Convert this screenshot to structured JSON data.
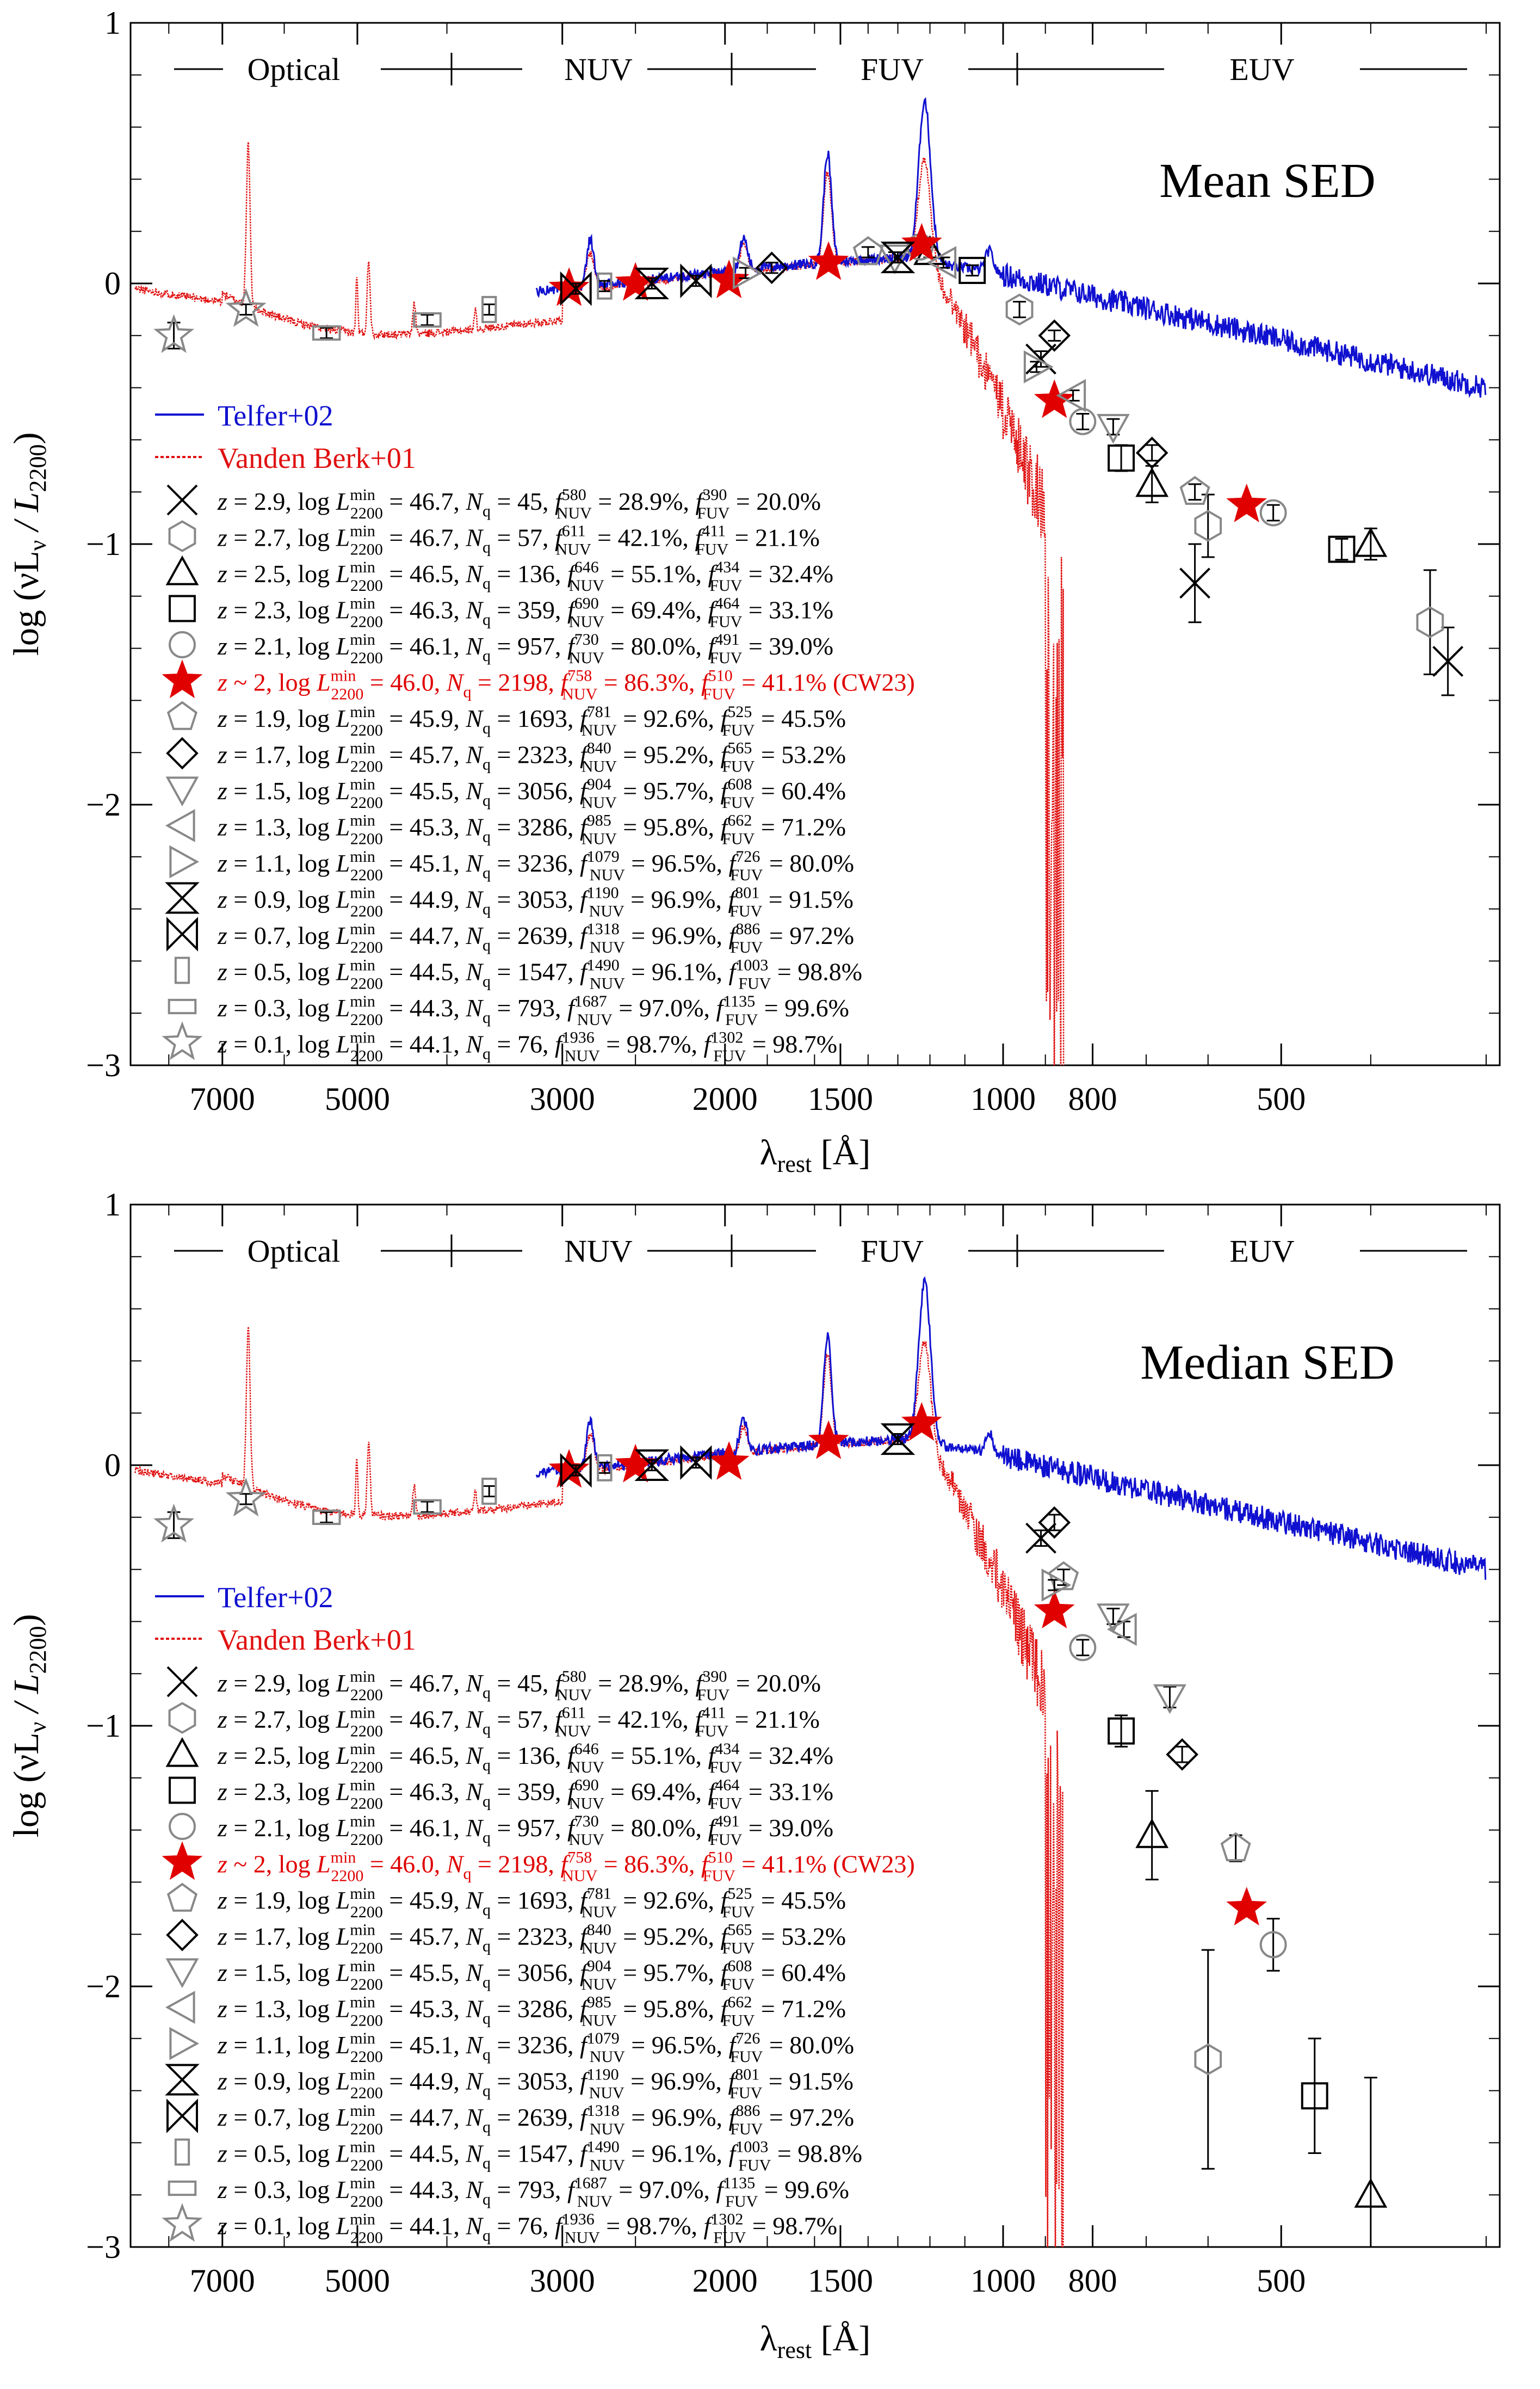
{
  "figure": {
    "xlabel_main": "λ",
    "xlabel_sub": "rest",
    "xlabel_unit": " [Å]",
    "ylabel": "log (νL",
    "ylabel_nu": "ν",
    "ylabel_mid": " / L",
    "ylabel_sub": "2200",
    "ylabel_end": ")",
    "bands": [
      "Optical",
      "NUV",
      "FUV",
      "EUV"
    ],
    "colors": {
      "telfer": "#1010d0",
      "vandenberk": "#e01010",
      "highlight": "#e00000",
      "markers": "#000000"
    }
  },
  "chart_data": [
    {
      "type": "line",
      "title": "Mean SED",
      "xscale": "log",
      "xlim": [
        8800,
        290
      ],
      "ylim": [
        -3,
        1
      ],
      "xticks": [
        7000,
        5000,
        3000,
        2000,
        1500,
        1000,
        800,
        500
      ],
      "yticks": [
        -3,
        -2,
        -1,
        0,
        1
      ],
      "legend_lines": [
        "Telfer+02",
        "Vanden Berk+01"
      ],
      "series": [
        {
          "name": "z = 2.9",
          "marker": "x",
          "color": "#000",
          "points": [
            [
              910,
              -0.29,
              0.03
            ],
            [
              620,
              -1.15,
              0.15
            ],
            [
              330,
              -1.45,
              0.13
            ]
          ]
        },
        {
          "name": "z = 2.7",
          "marker": "hexagon",
          "color": "#888",
          "points": [
            [
              960,
              -0.1,
              0.03
            ],
            [
              600,
              -0.93,
              0.12
            ],
            [
              345,
              -1.3,
              0.2
            ]
          ]
        },
        {
          "name": "z = 2.5",
          "marker": "triangle-up",
          "color": "#000",
          "points": [
            [
              1200,
              0.12,
              0.02
            ],
            [
              690,
              -0.77,
              0.07
            ],
            [
              400,
              -1.0,
              0.06
            ]
          ]
        },
        {
          "name": "z = 2.3",
          "marker": "square",
          "color": "#000",
          "points": [
            [
              1080,
              0.05,
              0.02
            ],
            [
              745,
              -0.67,
              0.05
            ],
            [
              430,
              -1.02,
              0.04
            ]
          ]
        },
        {
          "name": "z = 2.1",
          "marker": "circle",
          "color": "#888",
          "points": [
            [
              1230,
              0.14,
              0.02
            ],
            [
              820,
              -0.53,
              0.03
            ],
            [
              510,
              -0.88,
              0.03
            ]
          ]
        },
        {
          "name": "z ~ 2",
          "marker": "star-filled",
          "color": "#e00000",
          "points": [
            [
              2950,
              -0.02,
              0
            ],
            [
              2500,
              0.0,
              0
            ],
            [
              1980,
              0.01,
              0
            ],
            [
              1545,
              0.08,
              0
            ],
            [
              1225,
              0.15,
              0
            ],
            [
              880,
              -0.45,
              0
            ],
            [
              545,
              -0.85,
              0
            ]
          ]
        },
        {
          "name": "z = 1.9",
          "marker": "pentagon",
          "color": "#888",
          "points": [
            [
              1400,
              0.12,
              0.02
            ],
            [
              620,
              -0.8,
              0.03
            ]
          ]
        },
        {
          "name": "z = 1.7",
          "marker": "diamond",
          "color": "#000",
          "points": [
            [
              1780,
              0.06,
              0.02
            ],
            [
              880,
              -0.2,
              0.02
            ],
            [
              690,
              -0.65,
              0.03
            ]
          ]
        },
        {
          "name": "z = 1.5",
          "marker": "triangle-down",
          "color": "#888",
          "points": [
            [
              1310,
              0.1,
              0.02
            ],
            [
              760,
              -0.55,
              0.03
            ]
          ]
        },
        {
          "name": "z = 1.3",
          "marker": "triangle-left",
          "color": "#888",
          "points": [
            [
              1160,
              0.08,
              0.02
            ],
            [
              840,
              -0.43,
              0.02
            ]
          ]
        },
        {
          "name": "z = 1.1",
          "marker": "triangle-right",
          "color": "#888",
          "points": [
            [
              1900,
              0.04,
              0.02
            ],
            [
              920,
              -0.32,
              0.02
            ]
          ]
        },
        {
          "name": "z = 0.9",
          "marker": "hourglass",
          "color": "#000",
          "points": [
            [
              2400,
              0.0,
              0.02
            ],
            [
              1300,
              0.1,
              0.02
            ]
          ]
        },
        {
          "name": "z = 0.7",
          "marker": "bowtie",
          "color": "#000",
          "points": [
            [
              2900,
              -0.02,
              0.02
            ],
            [
              2150,
              0.01,
              0.02
            ]
          ]
        },
        {
          "name": "z = 0.5",
          "marker": "rect-tall",
          "color": "#888",
          "points": [
            [
              3600,
              -0.1,
              0.02
            ],
            [
              2700,
              -0.01,
              0.02
            ]
          ]
        },
        {
          "name": "z = 0.3",
          "marker": "rect-wide",
          "color": "#888",
          "points": [
            [
              5400,
              -0.19,
              0.02
            ],
            [
              4200,
              -0.14,
              0.02
            ]
          ]
        },
        {
          "name": "z = 0.1",
          "marker": "star-open",
          "color": "#888",
          "points": [
            [
              7900,
              -0.2,
              0.05
            ],
            [
              6600,
              -0.1,
              0.02
            ]
          ]
        }
      ]
    },
    {
      "type": "line",
      "title": "Median SED",
      "xscale": "log",
      "xlim": [
        8800,
        290
      ],
      "ylim": [
        -3,
        1
      ],
      "xticks": [
        7000,
        5000,
        3000,
        2000,
        1500,
        1000,
        800,
        500
      ],
      "yticks": [
        -3,
        -2,
        -1,
        0,
        1
      ],
      "legend_lines": [
        "Telfer+02",
        "Vanden Berk+01"
      ],
      "series": [
        {
          "name": "z = 2.9",
          "marker": "x",
          "color": "#000",
          "points": [
            [
              910,
              -0.28,
              0.03
            ]
          ]
        },
        {
          "name": "z = 2.7",
          "marker": "hexagon",
          "color": "#888",
          "points": [
            [
              600,
              -2.28,
              0.42
            ]
          ]
        },
        {
          "name": "z = 2.5",
          "marker": "triangle-up",
          "color": "#000",
          "points": [
            [
              690,
              -1.42,
              0.17
            ],
            [
              400,
              -2.8,
              0.45
            ]
          ]
        },
        {
          "name": "z = 2.3",
          "marker": "square",
          "color": "#000",
          "points": [
            [
              745,
              -1.02,
              0.06
            ],
            [
              460,
              -2.42,
              0.22
            ]
          ]
        },
        {
          "name": "z = 2.1",
          "marker": "circle",
          "color": "#888",
          "points": [
            [
              820,
              -0.7,
              0.03
            ],
            [
              510,
              -1.84,
              0.1
            ]
          ]
        },
        {
          "name": "z ~ 2",
          "marker": "star-filled",
          "color": "#e00000",
          "points": [
            [
              2950,
              -0.02,
              0
            ],
            [
              2500,
              0.0,
              0
            ],
            [
              1980,
              0.01,
              0
            ],
            [
              1545,
              0.09,
              0
            ],
            [
              1225,
              0.16,
              0
            ],
            [
              880,
              -0.56,
              0
            ],
            [
              545,
              -1.7,
              0
            ]
          ]
        },
        {
          "name": "z = 1.9",
          "marker": "pentagon",
          "color": "#888",
          "points": [
            [
              860,
              -0.43,
              0.03
            ],
            [
              560,
              -1.47,
              0.05
            ]
          ]
        },
        {
          "name": "z = 1.7",
          "marker": "diamond",
          "color": "#000",
          "points": [
            [
              880,
              -0.22,
              0.03
            ],
            [
              640,
              -1.11,
              0.03
            ]
          ]
        },
        {
          "name": "z = 1.5",
          "marker": "triangle-down",
          "color": "#888",
          "points": [
            [
              760,
              -0.58,
              0.03
            ],
            [
              660,
              -0.89,
              0.04
            ]
          ]
        },
        {
          "name": "z = 1.3",
          "marker": "triangle-left",
          "color": "#888",
          "points": [
            [
              740,
              -0.63,
              0.03
            ]
          ]
        },
        {
          "name": "z = 1.1",
          "marker": "triangle-right",
          "color": "#888",
          "points": [
            [
              880,
              -0.46,
              0.02
            ]
          ]
        },
        {
          "name": "z = 0.9",
          "marker": "hourglass",
          "color": "#000",
          "points": [
            [
              2400,
              0.0,
              0.02
            ],
            [
              1300,
              0.1,
              0.02
            ]
          ]
        },
        {
          "name": "z = 0.7",
          "marker": "bowtie",
          "color": "#000",
          "points": [
            [
              2900,
              -0.02,
              0.02
            ],
            [
              2150,
              0.01,
              0.02
            ]
          ]
        },
        {
          "name": "z = 0.5",
          "marker": "rect-tall",
          "color": "#888",
          "points": [
            [
              3600,
              -0.1,
              0.02
            ],
            [
              2700,
              -0.01,
              0.02
            ]
          ]
        },
        {
          "name": "z = 0.3",
          "marker": "rect-wide",
          "color": "#888",
          "points": [
            [
              5400,
              -0.2,
              0.02
            ],
            [
              4200,
              -0.16,
              0.02
            ]
          ]
        },
        {
          "name": "z = 0.1",
          "marker": "star-open",
          "color": "#888",
          "points": [
            [
              7900,
              -0.23,
              0.05
            ],
            [
              6600,
              -0.13,
              0.02
            ]
          ]
        }
      ]
    }
  ],
  "legend_rows": [
    {
      "z": "z = 2.9,",
      "L": "46.7,",
      "N": "45,",
      "nuv_sup": "580",
      "nuv": "= 28.9%,",
      "fuv_sup": "390",
      "fuv": "= 20.0%",
      "red": false
    },
    {
      "z": "z = 2.7,",
      "L": "46.7,",
      "N": "57,",
      "nuv_sup": "611",
      "nuv": "= 42.1%,",
      "fuv_sup": "411",
      "fuv": "= 21.1%",
      "red": false
    },
    {
      "z": "z = 2.5,",
      "L": "46.5,",
      "N": "136,",
      "nuv_sup": "646",
      "nuv": "= 55.1%,",
      "fuv_sup": "434",
      "fuv": "= 32.4%",
      "red": false
    },
    {
      "z": "z = 2.3,",
      "L": "46.3,",
      "N": "359,",
      "nuv_sup": "690",
      "nuv": "= 69.4%,",
      "fuv_sup": "464",
      "fuv": "= 33.1%",
      "red": false
    },
    {
      "z": "z = 2.1,",
      "L": "46.1,",
      "N": "957,",
      "nuv_sup": "730",
      "nuv": "= 80.0%,",
      "fuv_sup": "491",
      "fuv": "= 39.0%",
      "red": false
    },
    {
      "z": "z ~ 2,",
      "L": "46.0,",
      "N": "2198,",
      "nuv_sup": "758",
      "nuv": "= 86.3%,",
      "fuv_sup": "510",
      "fuv": "= 41.1% (CW23)",
      "red": true
    },
    {
      "z": "z = 1.9,",
      "L": "45.9,",
      "N": "1693,",
      "nuv_sup": "781",
      "nuv": "= 92.6%,",
      "fuv_sup": "525",
      "fuv": "= 45.5%",
      "red": false
    },
    {
      "z": "z = 1.7,",
      "L": "45.7,",
      "N": "2323,",
      "nuv_sup": "840",
      "nuv": "= 95.2%,",
      "fuv_sup": "565",
      "fuv": "= 53.2%",
      "red": false
    },
    {
      "z": "z = 1.5,",
      "L": "45.5,",
      "N": "3056,",
      "nuv_sup": "904",
      "nuv": "= 95.7%,",
      "fuv_sup": "608",
      "fuv": "= 60.4%",
      "red": false
    },
    {
      "z": "z = 1.3,",
      "L": "45.3,",
      "N": "3286,",
      "nuv_sup": "985",
      "nuv": "= 95.8%,",
      "fuv_sup": "662",
      "fuv": "= 71.2%",
      "red": false
    },
    {
      "z": "z = 1.1,",
      "L": "45.1,",
      "N": "3236,",
      "nuv_sup": "1079",
      "nuv": "= 96.5%,",
      "fuv_sup": "726",
      "fuv": "= 80.0%",
      "red": false
    },
    {
      "z": "z = 0.9,",
      "L": "44.9,",
      "N": "3053,",
      "nuv_sup": "1190",
      "nuv": "= 96.9%,",
      "fuv_sup": "801",
      "fuv": "= 91.5%",
      "red": false
    },
    {
      "z": "z = 0.7,",
      "L": "44.7,",
      "N": "2639,",
      "nuv_sup": "1318",
      "nuv": "= 96.9%,",
      "fuv_sup": "886",
      "fuv": "= 97.2%",
      "red": false
    },
    {
      "z": "z = 0.5,",
      "L": "44.5,",
      "N": "1547,",
      "nuv_sup": "1490",
      "nuv": "= 96.1%,",
      "fuv_sup": "1003",
      "fuv": "= 98.8%",
      "red": false
    },
    {
      "z": "z = 0.3,",
      "L": "44.3,",
      "N": "793,",
      "nuv_sup": "1687",
      "nuv": "= 97.0%,",
      "fuv_sup": "1135",
      "fuv": "= 99.6%",
      "red": false
    },
    {
      "z": "z = 0.1,",
      "L": "44.1,",
      "N": "76,",
      "nuv_sup": "1936",
      "nuv": "= 98.7%,",
      "fuv_sup": "1302",
      "fuv": "= 98.7%",
      "red": false
    }
  ]
}
